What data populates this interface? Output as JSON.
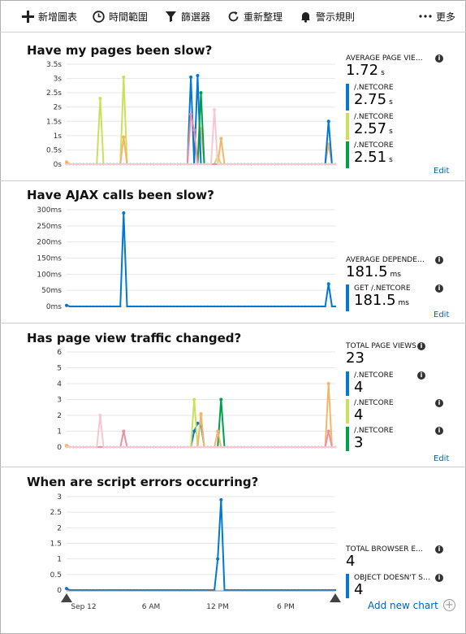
{
  "toolbar": {
    "add_chart": "新增圖表",
    "time_range": "時間範圍",
    "filter": "篩選器",
    "refresh": "重新整理",
    "alert_rules": "警示規則",
    "more": "更多"
  },
  "colors": {
    "blue": "#0078d4",
    "lime": "#cbe15c",
    "green": "#00a04a",
    "orange": "#f5b66b",
    "pink": "#ef8fa0",
    "light_pink": "#f6c8d0",
    "grid": "#e6e6e6"
  },
  "sections": [
    {
      "title": "Have my pages been slow?",
      "metrics": [
        {
          "label": "AVERAGE PAGE VIEW...",
          "value": "1.72",
          "unit": "s",
          "bar": null
        },
        {
          "label": "/.NETCORE",
          "value": "2.75",
          "unit": "s",
          "bar": "#0078d4"
        },
        {
          "label": "/.NETCORE",
          "value": "2.57",
          "unit": "s",
          "bar": "#cbe15c"
        },
        {
          "label": "/.NETCORE",
          "value": "2.51",
          "unit": "s",
          "bar": "#00a04a"
        }
      ],
      "edit": "Edit"
    },
    {
      "title": "Have AJAX calls been slow?",
      "metrics": [
        {
          "label": "AVERAGE DEPENDEN...",
          "value": "181.5",
          "unit": "ms",
          "bar": null
        },
        {
          "label": "GET  /.NETCORE",
          "value": "181.5",
          "unit": "ms",
          "bar": "#0078d4"
        }
      ],
      "edit": "Edit"
    },
    {
      "title": "Has page view traffic changed?",
      "metrics": [
        {
          "label": "TOTAL PAGE VIEWS",
          "value": "23",
          "unit": "",
          "bar": null
        },
        {
          "label": "/.NETCORE",
          "value": "4",
          "unit": "",
          "bar": "#0078d4"
        },
        {
          "label": "/.NETCORE",
          "value": "4",
          "unit": "",
          "bar": "#cbe15c"
        },
        {
          "label": "/.NETCORE",
          "value": "3",
          "unit": "",
          "bar": "#00a04a"
        }
      ],
      "edit": "Edit"
    },
    {
      "title": "When are script errors occurring?",
      "metrics": [
        {
          "label": "TOTAL BROWSER EX...",
          "value": "4",
          "unit": "",
          "bar": null
        },
        {
          "label": "OBJECT DOESN'T SUP...",
          "value": "4",
          "unit": "",
          "bar": "#0078d4"
        }
      ],
      "edit": ""
    }
  ],
  "add_new_chart": "Add new chart",
  "time_axis": [
    "Sep 12",
    "6 AM",
    "12 PM",
    "6 PM"
  ],
  "chart_data": [
    {
      "type": "line",
      "title": "Have my pages been slow?",
      "yticks": [
        "3.5s",
        "3s",
        "2.5s",
        "2s",
        "1.5s",
        "1s",
        "0.5s",
        "0s"
      ],
      "ylim": [
        0,
        3.5
      ],
      "x": [
        "Sep 12",
        "6 AM",
        "12 PM",
        "6 PM"
      ],
      "series": [
        {
          "color": "#cbe15c",
          "points": [
            [
              0,
              0.05
            ],
            [
              10,
              2.3
            ],
            [
              17,
              3.05
            ],
            [
              45,
              0.3
            ]
          ]
        },
        {
          "color": "#f5b66b",
          "points": [
            [
              0,
              0.08
            ],
            [
              17,
              0.95
            ],
            [
              40,
              1.25
            ],
            [
              46,
              0.9
            ],
            [
              78,
              0.7
            ]
          ]
        },
        {
          "color": "#0078d4",
          "points": [
            [
              37,
              3.05
            ],
            [
              39,
              3.1
            ],
            [
              78,
              1.5
            ]
          ]
        },
        {
          "color": "#00a04a",
          "points": [
            [
              40,
              2.5
            ]
          ]
        },
        {
          "color": "#ef8fa0",
          "points": [
            [
              37,
              1.75
            ],
            [
              38,
              1.2
            ]
          ]
        },
        {
          "color": "#f6c8d0",
          "points": [
            [
              44,
              1.9
            ]
          ]
        }
      ]
    },
    {
      "type": "line",
      "title": "Have AJAX calls been slow?",
      "yticks": [
        "300ms",
        "250ms",
        "200ms",
        "150ms",
        "100ms",
        "50ms",
        "0ms"
      ],
      "ylim": [
        0,
        300
      ],
      "x": [
        "Sep 12",
        "6 AM",
        "12 PM",
        "6 PM"
      ],
      "series": [
        {
          "color": "#0078d4",
          "points": [
            [
              0,
              3
            ],
            [
              17,
              290
            ],
            [
              78,
              70
            ]
          ]
        }
      ]
    },
    {
      "type": "line",
      "title": "Has page view traffic changed?",
      "yticks": [
        "6",
        "5",
        "4",
        "3",
        "2",
        "1",
        "0"
      ],
      "ylim": [
        0,
        6
      ],
      "x": [
        "Sep 12",
        "6 AM",
        "12 PM",
        "6 PM"
      ],
      "series": [
        {
          "color": "#0078d4",
          "points": [
            [
              38,
              1
            ],
            [
              39,
              1.5
            ],
            [
              40,
              1.5
            ]
          ]
        },
        {
          "color": "#cbe15c",
          "points": [
            [
              0,
              0.05
            ],
            [
              38,
              3
            ],
            [
              40,
              2.0
            ]
          ]
        },
        {
          "color": "#00a04a",
          "points": [
            [
              46,
              3
            ]
          ]
        },
        {
          "color": "#f5b66b",
          "points": [
            [
              0,
              0.1
            ],
            [
              40,
              2.1
            ],
            [
              45,
              1
            ],
            [
              78,
              4
            ]
          ]
        },
        {
          "color": "#ef8fa0",
          "points": [
            [
              17,
              1
            ],
            [
              78,
              1
            ]
          ]
        },
        {
          "color": "#f6c8d0",
          "points": [
            [
              10,
              2
            ]
          ]
        }
      ]
    },
    {
      "type": "line",
      "title": "When are script errors occurring?",
      "yticks": [
        "3",
        "2.5",
        "2",
        "1.5",
        "1",
        "0.5",
        "0"
      ],
      "ylim": [
        0,
        3
      ],
      "x": [
        "Sep 12",
        "6 AM",
        "12 PM",
        "6 PM"
      ],
      "series": [
        {
          "color": "#0078d4",
          "points": [
            [
              0,
              0.05
            ],
            [
              45,
              1
            ],
            [
              46,
              2.9
            ]
          ]
        }
      ]
    }
  ]
}
